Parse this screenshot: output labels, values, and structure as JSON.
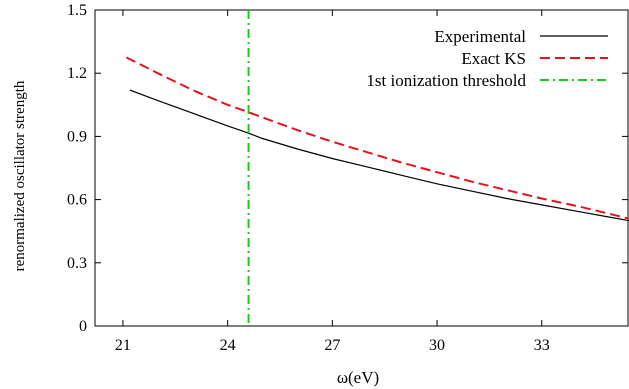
{
  "chart_data": {
    "type": "line",
    "title": "",
    "xlabel": "ω(eV)",
    "ylabel": "renormalized oscillator strength",
    "xlim": [
      20.2,
      35.5
    ],
    "ylim": [
      0,
      1.5
    ],
    "x_ticks": [
      21,
      24,
      27,
      30,
      33
    ],
    "x_tick_labels": [
      "21",
      "24",
      "27",
      "30",
      "33"
    ],
    "y_ticks": [
      0,
      0.3,
      0.6,
      0.9,
      1.2,
      1.5
    ],
    "y_tick_labels": [
      "0",
      "0.3",
      "0.6",
      "0.9",
      "1.2",
      "1.5"
    ],
    "grid": false,
    "legend_position": "top-right",
    "series": [
      {
        "name": "Experimental",
        "style": "solid",
        "color": "#000000",
        "x": [
          21.2,
          22,
          23,
          24,
          24.6,
          25,
          26,
          27,
          28,
          29,
          30,
          31,
          32,
          33,
          34,
          35,
          35.5
        ],
        "y": [
          1.12,
          1.07,
          1.01,
          0.95,
          0.915,
          0.89,
          0.84,
          0.795,
          0.755,
          0.715,
          0.675,
          0.64,
          0.605,
          0.575,
          0.545,
          0.515,
          0.5
        ]
      },
      {
        "name": "Exact KS",
        "style": "dashed",
        "color": "#e8111b",
        "x": [
          21.1,
          22,
          23,
          24,
          24.6,
          25,
          26,
          27,
          28,
          29,
          30,
          31,
          32,
          33,
          34,
          35,
          35.5
        ],
        "y": [
          1.275,
          1.2,
          1.12,
          1.05,
          1.015,
          0.99,
          0.93,
          0.875,
          0.825,
          0.775,
          0.73,
          0.685,
          0.645,
          0.605,
          0.57,
          0.53,
          0.51
        ]
      }
    ],
    "vertical_lines": [
      {
        "name": "1st ionization threshold",
        "x": 24.6,
        "style": "dash-dot",
        "color": "#11d011"
      }
    ]
  }
}
